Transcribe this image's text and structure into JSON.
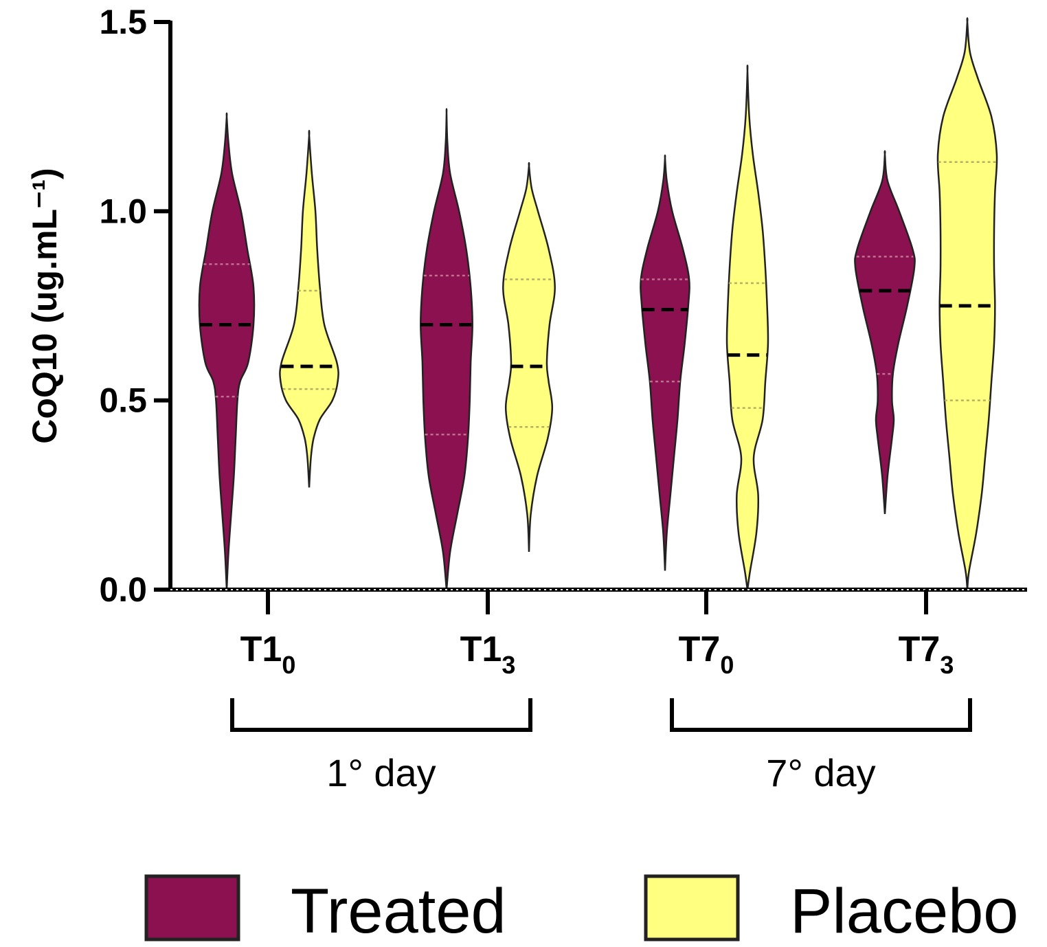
{
  "chart_data": {
    "type": "violin",
    "ylabel": "CoQ10 (ug.mL⁻¹)",
    "ylim": [
      0,
      1.5
    ],
    "yticks": [
      0.0,
      0.5,
      1.0,
      1.5
    ],
    "ytick_labels": [
      "0.0",
      "0.5",
      "1.0",
      "1.5"
    ],
    "categories": [
      {
        "main": "T1",
        "sub": "0"
      },
      {
        "main": "T1",
        "sub": "3"
      },
      {
        "main": "T7",
        "sub": "0"
      },
      {
        "main": "T7",
        "sub": "3"
      }
    ],
    "groups": [
      {
        "label": "1° day",
        "categories": [
          0,
          1
        ]
      },
      {
        "label": "7° day",
        "categories": [
          2,
          3
        ]
      }
    ],
    "series": [
      {
        "name": "Treated",
        "color": "#8b1150",
        "violins": [
          {
            "min": 0.0,
            "max": 1.25,
            "median": 0.7,
            "q1": 0.51,
            "q3": 0.86,
            "profile": [
              [
                0.0,
                0.0
              ],
              [
                0.1,
                0.02
              ],
              [
                0.2,
                0.05
              ],
              [
                0.3,
                0.08
              ],
              [
                0.4,
                0.1
              ],
              [
                0.5,
                0.12
              ],
              [
                0.55,
                0.15
              ],
              [
                0.6,
                0.24
              ],
              [
                0.7,
                0.3
              ],
              [
                0.8,
                0.3
              ],
              [
                0.9,
                0.23
              ],
              [
                1.0,
                0.16
              ],
              [
                1.1,
                0.06
              ],
              [
                1.18,
                0.02
              ],
              [
                1.25,
                0.0
              ]
            ]
          },
          {
            "min": 0.0,
            "max": 1.26,
            "median": 0.7,
            "q1": 0.41,
            "q3": 0.83,
            "profile": [
              [
                0.0,
                0.0
              ],
              [
                0.1,
                0.04
              ],
              [
                0.2,
                0.12
              ],
              [
                0.3,
                0.2
              ],
              [
                0.4,
                0.24
              ],
              [
                0.5,
                0.26
              ],
              [
                0.6,
                0.27
              ],
              [
                0.7,
                0.29
              ],
              [
                0.8,
                0.27
              ],
              [
                0.9,
                0.22
              ],
              [
                1.0,
                0.14
              ],
              [
                1.1,
                0.04
              ],
              [
                1.18,
                0.01
              ],
              [
                1.26,
                0.0
              ]
            ]
          },
          {
            "min": 0.05,
            "max": 1.14,
            "median": 0.74,
            "q1": 0.55,
            "q3": 0.82,
            "profile": [
              [
                0.05,
                0.0
              ],
              [
                0.15,
                0.02
              ],
              [
                0.25,
                0.06
              ],
              [
                0.35,
                0.1
              ],
              [
                0.45,
                0.14
              ],
              [
                0.55,
                0.17
              ],
              [
                0.65,
                0.22
              ],
              [
                0.75,
                0.26
              ],
              [
                0.82,
                0.27
              ],
              [
                0.9,
                0.2
              ],
              [
                1.0,
                0.08
              ],
              [
                1.08,
                0.02
              ],
              [
                1.14,
                0.0
              ]
            ]
          },
          {
            "min": 0.2,
            "max": 1.15,
            "median": 0.79,
            "q1": 0.57,
            "q3": 0.88,
            "profile": [
              [
                0.2,
                0.0
              ],
              [
                0.3,
                0.03
              ],
              [
                0.4,
                0.08
              ],
              [
                0.45,
                0.1
              ],
              [
                0.5,
                0.08
              ],
              [
                0.57,
                0.09
              ],
              [
                0.65,
                0.15
              ],
              [
                0.75,
                0.25
              ],
              [
                0.85,
                0.33
              ],
              [
                0.9,
                0.31
              ],
              [
                1.0,
                0.16
              ],
              [
                1.08,
                0.03
              ],
              [
                1.15,
                0.0
              ]
            ]
          }
        ]
      },
      {
        "name": "Placebo",
        "color": "#ffff80",
        "violins": [
          {
            "min": 0.27,
            "max": 1.2,
            "median": 0.59,
            "q1": 0.53,
            "q3": 0.79,
            "profile": [
              [
                0.27,
                0.0
              ],
              [
                0.35,
                0.02
              ],
              [
                0.4,
                0.05
              ],
              [
                0.45,
                0.12
              ],
              [
                0.5,
                0.26
              ],
              [
                0.55,
                0.32
              ],
              [
                0.6,
                0.31
              ],
              [
                0.7,
                0.17
              ],
              [
                0.8,
                0.12
              ],
              [
                0.9,
                0.09
              ],
              [
                1.0,
                0.07
              ],
              [
                1.1,
                0.03
              ],
              [
                1.2,
                0.0
              ]
            ]
          },
          {
            "min": 0.1,
            "max": 1.12,
            "median": 0.59,
            "q1": 0.43,
            "q3": 0.82,
            "profile": [
              [
                0.1,
                0.0
              ],
              [
                0.2,
                0.02
              ],
              [
                0.3,
                0.09
              ],
              [
                0.4,
                0.21
              ],
              [
                0.48,
                0.26
              ],
              [
                0.55,
                0.22
              ],
              [
                0.6,
                0.2
              ],
              [
                0.7,
                0.23
              ],
              [
                0.8,
                0.29
              ],
              [
                0.9,
                0.22
              ],
              [
                1.0,
                0.1
              ],
              [
                1.06,
                0.03
              ],
              [
                1.12,
                0.0
              ]
            ]
          },
          {
            "min": 0.0,
            "max": 1.37,
            "median": 0.62,
            "q1": 0.48,
            "q3": 0.81,
            "profile": [
              [
                0.0,
                0.0
              ],
              [
                0.05,
                0.03
              ],
              [
                0.15,
                0.1
              ],
              [
                0.25,
                0.12
              ],
              [
                0.35,
                0.07
              ],
              [
                0.45,
                0.17
              ],
              [
                0.55,
                0.2
              ],
              [
                0.65,
                0.23
              ],
              [
                0.75,
                0.22
              ],
              [
                0.85,
                0.2
              ],
              [
                0.95,
                0.17
              ],
              [
                1.05,
                0.12
              ],
              [
                1.15,
                0.06
              ],
              [
                1.25,
                0.02
              ],
              [
                1.37,
                0.0
              ]
            ]
          },
          {
            "min": 0.0,
            "max": 1.5,
            "median": 0.75,
            "q1": 0.5,
            "q3": 1.13,
            "profile": [
              [
                0.0,
                0.0
              ],
              [
                0.05,
                0.02
              ],
              [
                0.15,
                0.1
              ],
              [
                0.25,
                0.16
              ],
              [
                0.35,
                0.2
              ],
              [
                0.45,
                0.24
              ],
              [
                0.55,
                0.27
              ],
              [
                0.65,
                0.3
              ],
              [
                0.75,
                0.31
              ],
              [
                0.85,
                0.3
              ],
              [
                0.95,
                0.3
              ],
              [
                1.05,
                0.31
              ],
              [
                1.15,
                0.33
              ],
              [
                1.25,
                0.27
              ],
              [
                1.35,
                0.12
              ],
              [
                1.42,
                0.03
              ],
              [
                1.5,
                0.0
              ]
            ]
          }
        ]
      }
    ],
    "legend": {
      "position": "bottom",
      "entries": [
        "Treated",
        "Placebo"
      ]
    }
  }
}
